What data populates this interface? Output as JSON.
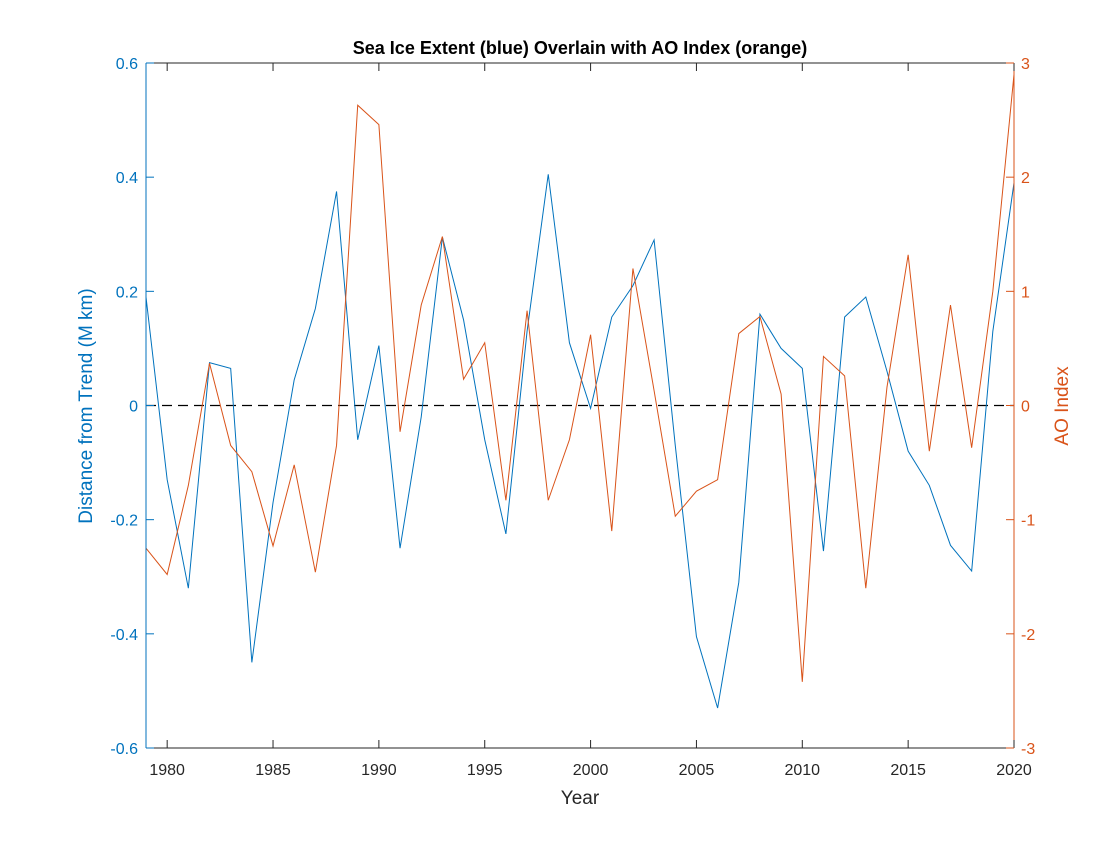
{
  "chart_data": {
    "type": "line",
    "title": "Sea Ice Extent (blue) Overlain with AO Index (orange)",
    "xlabel": "Year",
    "ylabel_left": "Distance from Trend (M km)",
    "ylabel_right": "AO Index",
    "xlim": [
      1979,
      2020
    ],
    "ylim_left": [
      -0.6,
      0.6
    ],
    "ylim_right": [
      -3,
      3
    ],
    "x_ticks": [
      "1980",
      "1985",
      "1990",
      "1995",
      "2000",
      "2005",
      "2010",
      "2015",
      "2020"
    ],
    "y_ticks_left": [
      "-0.6",
      "-0.4",
      "-0.2",
      "0",
      "0.2",
      "0.4",
      "0.6"
    ],
    "y_ticks_right": [
      "-3",
      "-2",
      "-1",
      "0",
      "1",
      "2",
      "3"
    ],
    "grid": false,
    "reference_line": {
      "axis": "left",
      "y": 0,
      "style": "dashed",
      "color": "#000000"
    },
    "x": [
      1979,
      1980,
      1981,
      1982,
      1983,
      1984,
      1985,
      1986,
      1987,
      1988,
      1989,
      1990,
      1991,
      1992,
      1993,
      1994,
      1995,
      1996,
      1997,
      1998,
      1999,
      2000,
      2001,
      2002,
      2003,
      2004,
      2005,
      2006,
      2007,
      2008,
      2009,
      2010,
      2011,
      2012,
      2013,
      2014,
      2015,
      2016,
      2017,
      2018,
      2019,
      2020
    ],
    "series": [
      {
        "axis": "left",
        "color": "#0072BD",
        "values": [
          0.19,
          -0.13,
          -0.32,
          0.075,
          0.065,
          -0.45,
          -0.17,
          0.045,
          0.17,
          0.375,
          -0.06,
          0.105,
          -0.25,
          -0.02,
          0.295,
          0.15,
          -0.06,
          -0.225,
          0.13,
          0.405,
          0.11,
          -0.005,
          0.155,
          0.21,
          0.29,
          -0.07,
          -0.405,
          -0.53,
          -0.31,
          0.16,
          0.1,
          0.065,
          -0.255,
          0.155,
          0.19,
          0.06,
          -0.08,
          -0.14,
          -0.245,
          -0.29,
          0.13,
          0.39
        ]
      },
      {
        "axis": "right",
        "color": "#D95319",
        "values": [
          -1.25,
          -1.48,
          -0.7,
          0.37,
          -0.35,
          -0.58,
          -1.23,
          -0.52,
          -1.46,
          -0.35,
          2.63,
          2.46,
          -0.23,
          0.88,
          1.48,
          0.23,
          0.55,
          -0.83,
          0.83,
          -0.83,
          -0.3,
          0.62,
          -1.1,
          1.2,
          0.13,
          -0.97,
          -0.75,
          -0.65,
          0.63,
          0.78,
          0.1,
          -2.42,
          0.43,
          0.26,
          -1.6,
          0.16,
          1.32,
          -0.4,
          0.88,
          -0.37,
          1.0,
          2.9
        ]
      }
    ]
  }
}
